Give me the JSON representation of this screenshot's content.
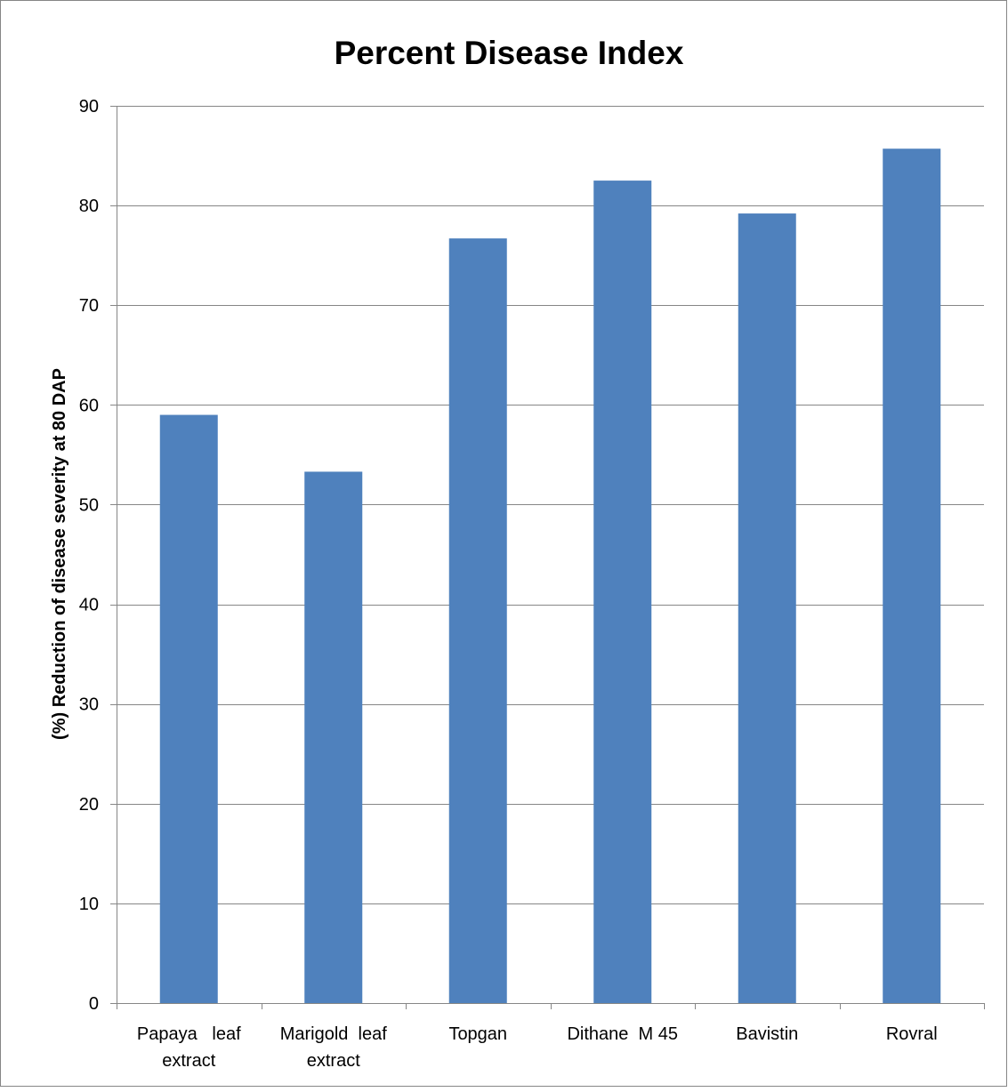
{
  "chart_data": {
    "type": "bar",
    "title": "Percent Disease Index",
    "ylabel": "(%) Reduction of disease severity at 80 DAP",
    "xlabel": "",
    "categories": [
      [
        "Papaya   leaf",
        "extract"
      ],
      [
        "Marigold  leaf",
        "extract"
      ],
      [
        "Topgan"
      ],
      [
        "Dithane  M 45"
      ],
      [
        "Bavistin"
      ],
      [
        "Rovral"
      ]
    ],
    "values": [
      59.0,
      53.3,
      76.7,
      82.5,
      79.2,
      85.7
    ],
    "ylim": [
      0,
      90
    ],
    "yticks": [
      0,
      10,
      20,
      30,
      40,
      50,
      60,
      70,
      80,
      90
    ],
    "grid": true,
    "legend": "none",
    "colors": {
      "bar": "#4f81bd",
      "grid": "#868686",
      "axis": "#868686",
      "frame": "#868686"
    }
  }
}
